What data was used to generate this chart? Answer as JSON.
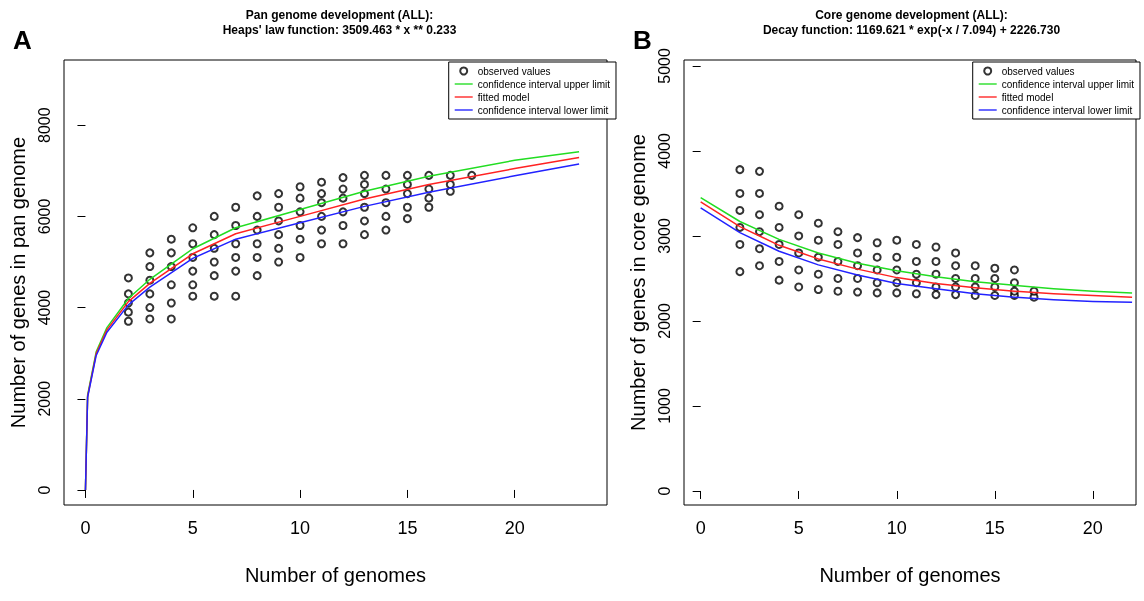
{
  "chart_data": [
    {
      "type": "scatter",
      "title": "Pan genome development (ALL):",
      "subtitle": "Heaps' law function: 3509.463 * x ** 0.233",
      "annotations": [
        "A"
      ],
      "xlabel": "Number of genomes",
      "ylabel": "Number of genes in pan genome",
      "xlim": [
        -1,
        24.3
      ],
      "ylim": [
        -330,
        9430
      ],
      "xticks": [
        0,
        5,
        10,
        15,
        20
      ],
      "yticks": [
        0,
        2000,
        4000,
        6000,
        8000
      ],
      "grid": false,
      "legend": "top right",
      "series": [
        {
          "name": "observed values",
          "marker": "circle",
          "color": "#000000",
          "x": [
            2,
            2,
            2,
            2,
            2,
            3,
            3,
            3,
            3,
            3,
            3,
            4,
            4,
            4,
            4,
            4,
            4,
            5,
            5,
            5,
            5,
            5,
            5,
            6,
            6,
            6,
            6,
            6,
            6,
            7,
            7,
            7,
            7,
            7,
            7,
            8,
            8,
            8,
            8,
            8,
            8,
            9,
            9,
            9,
            9,
            9,
            9,
            10,
            10,
            10,
            10,
            10,
            10,
            11,
            11,
            11,
            11,
            11,
            11,
            12,
            12,
            12,
            12,
            12,
            12,
            13,
            13,
            13,
            13,
            13,
            13,
            14,
            14,
            14,
            14,
            14,
            15,
            15,
            15,
            15,
            15,
            16,
            16,
            16,
            16,
            17,
            17,
            17,
            18
          ],
          "values": [
            3700,
            3900,
            4100,
            4300,
            4650,
            3750,
            4000,
            4300,
            4600,
            4900,
            5200,
            3750,
            4100,
            4500,
            4900,
            5200,
            5500,
            4250,
            4500,
            4800,
            5100,
            5400,
            5750,
            4250,
            4700,
            5000,
            5300,
            5600,
            6000,
            4250,
            4800,
            5100,
            5400,
            5800,
            6200,
            4700,
            5100,
            5400,
            5700,
            6000,
            6450,
            5000,
            5300,
            5600,
            5900,
            6200,
            6500,
            5100,
            5500,
            5800,
            6100,
            6400,
            6650,
            5400,
            5700,
            6000,
            6300,
            6500,
            6750,
            5400,
            5800,
            6100,
            6400,
            6600,
            6850,
            5600,
            5900,
            6200,
            6500,
            6700,
            6900,
            5700,
            6000,
            6300,
            6600,
            6900,
            5950,
            6200,
            6500,
            6700,
            6900,
            6200,
            6400,
            6600,
            6900,
            6550,
            6700,
            6900,
            6900
          ]
        },
        {
          "name": "confidence interval upper limit",
          "type": "line",
          "marker": "none",
          "line_style": "solid",
          "color": "#22dd22",
          "x": [
            0,
            0.1,
            0.5,
            1,
            2,
            3,
            5,
            7,
            10,
            13,
            16,
            20,
            23
          ],
          "values": [
            0,
            2080,
            3030,
            3560,
            4200,
            4620,
            5290,
            5750,
            6150,
            6550,
            6880,
            7230,
            7420
          ]
        },
        {
          "name": "fitted model",
          "type": "line",
          "marker": "none",
          "line_style": "solid",
          "color": "#ff2222",
          "x": [
            0,
            0.1,
            0.5,
            1,
            2,
            3,
            5,
            7,
            10,
            13,
            16,
            20,
            23
          ],
          "values": [
            0,
            2050,
            2990,
            3510,
            4130,
            4530,
            5180,
            5620,
            6000,
            6380,
            6700,
            7050,
            7290
          ]
        },
        {
          "name": "confidence interval lower limit",
          "type": "line",
          "marker": "none",
          "line_style": "solid",
          "color": "#2222ff",
          "x": [
            0,
            0.1,
            0.5,
            1,
            2,
            3,
            5,
            7,
            10,
            13,
            16,
            20,
            23
          ],
          "values": [
            0,
            2030,
            2950,
            3460,
            4060,
            4450,
            5080,
            5500,
            5860,
            6220,
            6530,
            6890,
            7150
          ]
        }
      ]
    },
    {
      "type": "scatter",
      "title": "Core genome development (ALL):",
      "subtitle": "Decay function: 1169.621 * exp(-x / 7.094) + 2226.730",
      "annotations": [
        "B"
      ],
      "xlabel": "Number of genomes",
      "ylabel": "Number of genes in core genome",
      "xlim": [
        -0.85,
        22.2
      ],
      "ylim": [
        -165,
        5070
      ],
      "xticks": [
        0,
        5,
        10,
        15,
        20
      ],
      "yticks": [
        0,
        1000,
        2000,
        3000,
        4000,
        5000
      ],
      "grid": false,
      "legend": "top right",
      "series": [
        {
          "name": "observed values",
          "marker": "circle",
          "color": "#000000",
          "x": [
            2,
            2,
            2,
            2,
            2,
            2,
            3,
            3,
            3,
            3,
            3,
            3,
            4,
            4,
            4,
            4,
            4,
            5,
            5,
            5,
            5,
            5,
            6,
            6,
            6,
            6,
            6,
            7,
            7,
            7,
            7,
            7,
            8,
            8,
            8,
            8,
            8,
            9,
            9,
            9,
            9,
            9,
            10,
            10,
            10,
            10,
            10,
            11,
            11,
            11,
            11,
            11,
            12,
            12,
            12,
            12,
            12,
            13,
            13,
            13,
            13,
            13,
            14,
            14,
            14,
            14,
            15,
            15,
            15,
            15,
            16,
            16,
            16,
            16,
            17,
            17
          ],
          "values": [
            2580,
            2900,
            3100,
            3300,
            3500,
            3780,
            2650,
            2850,
            3050,
            3250,
            3500,
            3760,
            2480,
            2700,
            2900,
            3100,
            3350,
            2400,
            2600,
            2800,
            3000,
            3250,
            2370,
            2550,
            2750,
            2950,
            3150,
            2350,
            2500,
            2700,
            2900,
            3050,
            2340,
            2500,
            2650,
            2800,
            2980,
            2330,
            2450,
            2600,
            2750,
            2920,
            2330,
            2450,
            2600,
            2750,
            2950,
            2320,
            2450,
            2550,
            2700,
            2900,
            2310,
            2400,
            2550,
            2700,
            2870,
            2310,
            2400,
            2500,
            2650,
            2800,
            2300,
            2400,
            2500,
            2650,
            2300,
            2400,
            2500,
            2620,
            2300,
            2350,
            2450,
            2600,
            2280,
            2350
          ]
        },
        {
          "name": "confidence interval upper limit",
          "type": "line",
          "marker": "none",
          "line_style": "solid",
          "color": "#22dd22",
          "x": [
            0,
            2,
            4,
            6,
            8,
            10,
            12,
            14,
            16,
            18,
            20,
            22
          ],
          "values": [
            3450,
            3170,
            2960,
            2800,
            2680,
            2590,
            2520,
            2460,
            2420,
            2380,
            2350,
            2330
          ]
        },
        {
          "name": "fitted model",
          "type": "line",
          "marker": "none",
          "line_style": "solid",
          "color": "#ff2222",
          "x": [
            0,
            2,
            4,
            6,
            8,
            10,
            12,
            14,
            16,
            18,
            20,
            22
          ],
          "values": [
            3400,
            3110,
            2890,
            2730,
            2610,
            2510,
            2440,
            2390,
            2350,
            2320,
            2300,
            2280
          ]
        },
        {
          "name": "confidence interval lower limit",
          "type": "line",
          "marker": "none",
          "line_style": "solid",
          "color": "#2222ff",
          "x": [
            0,
            2,
            4,
            6,
            8,
            10,
            12,
            14,
            16,
            18,
            20,
            22
          ],
          "values": [
            3330,
            3040,
            2820,
            2660,
            2540,
            2440,
            2380,
            2320,
            2280,
            2250,
            2230,
            2220
          ]
        }
      ]
    }
  ]
}
